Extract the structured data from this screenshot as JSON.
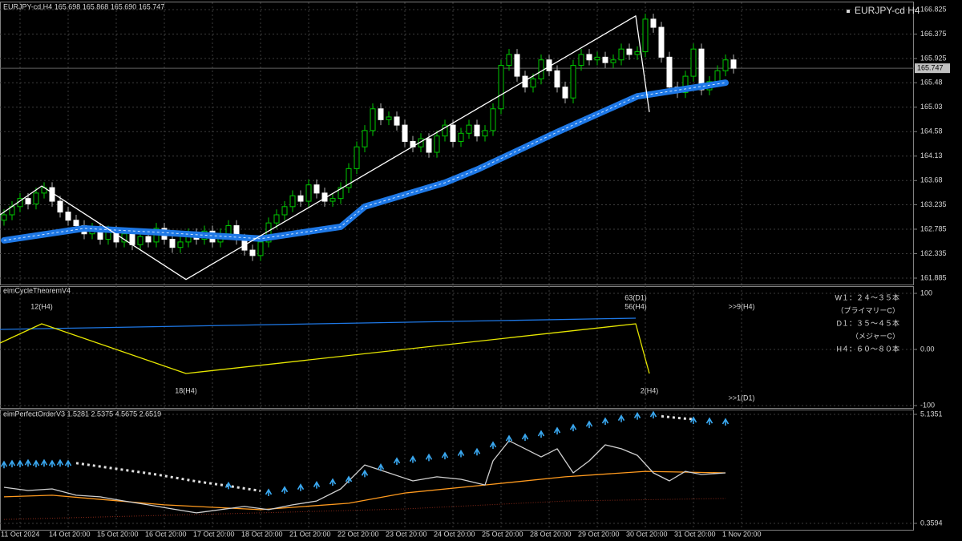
{
  "chart_data": [
    {
      "type": "candlestick",
      "title": "EURJPY-cd,H4  165.698 165.868 165.690 165.747",
      "symbol_label": "EURJPY-cd H4",
      "ylim": [
        161.767,
        166.958
      ],
      "yticks": [
        166.825,
        166.375,
        165.925,
        165.48,
        165.03,
        164.58,
        164.13,
        163.68,
        163.235,
        162.785,
        162.335,
        161.885
      ],
      "grid": true,
      "last_price": 165.747,
      "up_color": "#00c800",
      "down_color": "#ffffff",
      "ohlc": [
        [
          162.95,
          163.15,
          162.85,
          163.05
        ],
        [
          163.05,
          163.3,
          162.95,
          163.2
        ],
        [
          163.2,
          163.45,
          163.1,
          163.35
        ],
        [
          163.35,
          163.45,
          163.15,
          163.25
        ],
        [
          163.25,
          163.55,
          163.15,
          163.45
        ],
        [
          163.45,
          163.65,
          163.35,
          163.55
        ],
        [
          163.55,
          163.65,
          163.2,
          163.3
        ],
        [
          163.3,
          163.4,
          163.0,
          163.1
        ],
        [
          163.1,
          163.2,
          162.85,
          162.95
        ],
        [
          162.95,
          163.05,
          162.75,
          162.85
        ],
        [
          162.85,
          162.95,
          162.6,
          162.7
        ],
        [
          162.7,
          162.9,
          162.6,
          162.8
        ],
        [
          162.8,
          162.9,
          162.5,
          162.6
        ],
        [
          162.6,
          162.85,
          162.5,
          162.75
        ],
        [
          162.75,
          162.85,
          162.45,
          162.55
        ],
        [
          162.55,
          162.8,
          162.45,
          162.7
        ],
        [
          162.7,
          162.8,
          162.4,
          162.5
        ],
        [
          162.5,
          162.75,
          162.4,
          162.65
        ],
        [
          162.65,
          162.75,
          162.45,
          162.55
        ],
        [
          162.55,
          162.9,
          162.45,
          162.8
        ],
        [
          162.8,
          162.9,
          162.5,
          162.6
        ],
        [
          162.6,
          162.7,
          162.35,
          162.45
        ],
        [
          162.45,
          162.65,
          162.35,
          162.55
        ],
        [
          162.55,
          162.8,
          162.45,
          162.7
        ],
        [
          162.7,
          162.8,
          162.5,
          162.6
        ],
        [
          162.6,
          162.85,
          162.5,
          162.75
        ],
        [
          162.75,
          162.85,
          162.45,
          162.55
        ],
        [
          162.55,
          162.8,
          162.45,
          162.7
        ],
        [
          162.7,
          162.95,
          162.6,
          162.85
        ],
        [
          162.85,
          162.95,
          162.5,
          162.6
        ],
        [
          162.6,
          162.7,
          162.3,
          162.4
        ],
        [
          162.4,
          162.5,
          162.2,
          162.3
        ],
        [
          162.3,
          162.65,
          162.2,
          162.55
        ],
        [
          162.55,
          163.0,
          162.45,
          162.9
        ],
        [
          162.9,
          163.15,
          162.8,
          163.05
        ],
        [
          163.05,
          163.3,
          162.95,
          163.2
        ],
        [
          163.2,
          163.5,
          163.1,
          163.4
        ],
        [
          163.4,
          163.5,
          163.2,
          163.3
        ],
        [
          163.3,
          163.7,
          163.2,
          163.6
        ],
        [
          163.6,
          163.7,
          163.35,
          163.45
        ],
        [
          163.45,
          163.55,
          163.2,
          163.3
        ],
        [
          163.3,
          163.45,
          163.2,
          163.35
        ],
        [
          163.35,
          163.65,
          163.25,
          163.55
        ],
        [
          163.55,
          164.0,
          163.45,
          163.9
        ],
        [
          163.9,
          164.4,
          163.8,
          164.3
        ],
        [
          164.3,
          164.7,
          164.2,
          164.6
        ],
        [
          164.6,
          165.1,
          164.5,
          165.0
        ],
        [
          165.0,
          165.1,
          164.7,
          164.8
        ],
        [
          164.8,
          164.95,
          164.7,
          164.85
        ],
        [
          164.85,
          164.95,
          164.6,
          164.7
        ],
        [
          164.7,
          164.8,
          164.3,
          164.4
        ],
        [
          164.4,
          164.5,
          164.2,
          164.3
        ],
        [
          164.3,
          164.55,
          164.2,
          164.45
        ],
        [
          164.45,
          164.55,
          164.1,
          164.2
        ],
        [
          164.2,
          164.6,
          164.1,
          164.5
        ],
        [
          164.5,
          164.8,
          164.4,
          164.7
        ],
        [
          164.7,
          164.8,
          164.3,
          164.4
        ],
        [
          164.4,
          164.65,
          164.3,
          164.55
        ],
        [
          164.55,
          164.8,
          164.45,
          164.7
        ],
        [
          164.7,
          164.8,
          164.4,
          164.5
        ],
        [
          164.5,
          164.7,
          164.4,
          164.6
        ],
        [
          164.6,
          165.1,
          164.5,
          165.0
        ],
        [
          165.0,
          165.9,
          164.9,
          165.8
        ],
        [
          165.8,
          166.1,
          165.7,
          166.0
        ],
        [
          166.0,
          166.1,
          165.5,
          165.6
        ],
        [
          165.6,
          165.7,
          165.3,
          165.4
        ],
        [
          165.4,
          165.65,
          165.3,
          165.55
        ],
        [
          165.55,
          166.0,
          165.45,
          165.9
        ],
        [
          165.9,
          166.0,
          165.6,
          165.7
        ],
        [
          165.7,
          165.8,
          165.3,
          165.4
        ],
        [
          165.4,
          165.5,
          165.1,
          165.2
        ],
        [
          165.2,
          165.9,
          165.1,
          165.8
        ],
        [
          165.8,
          166.1,
          165.7,
          166.0
        ],
        [
          166.0,
          166.1,
          165.8,
          165.9
        ],
        [
          165.9,
          166.05,
          165.8,
          165.95
        ],
        [
          165.95,
          166.05,
          165.75,
          165.85
        ],
        [
          165.85,
          166.0,
          165.75,
          165.9
        ],
        [
          165.9,
          166.2,
          165.8,
          166.1
        ],
        [
          166.1,
          166.2,
          165.9,
          166.0
        ],
        [
          166.0,
          166.15,
          165.9,
          166.05
        ],
        [
          166.05,
          166.75,
          165.95,
          166.65
        ],
        [
          166.65,
          166.75,
          166.4,
          166.5
        ],
        [
          166.5,
          166.6,
          165.85,
          165.95
        ],
        [
          165.95,
          166.05,
          165.3,
          165.4
        ],
        [
          165.4,
          165.5,
          165.2,
          165.3
        ],
        [
          165.3,
          165.7,
          165.2,
          165.6
        ],
        [
          165.6,
          166.2,
          165.5,
          166.1
        ],
        [
          166.1,
          166.2,
          165.25,
          165.35
        ],
        [
          165.35,
          165.6,
          165.25,
          165.5
        ],
        [
          165.5,
          165.8,
          165.4,
          165.7
        ],
        [
          165.7,
          166.0,
          165.6,
          165.9
        ],
        [
          165.9,
          166.0,
          165.65,
          165.747
        ]
      ],
      "series": [
        {
          "style": "ma",
          "color": "#1e78e6",
          "x": [
            0,
            10,
            19,
            32,
            42,
            45,
            55,
            59,
            69,
            79,
            90
          ],
          "values": [
            162.58,
            162.8,
            162.73,
            162.61,
            162.83,
            163.2,
            163.64,
            163.88,
            164.57,
            165.23,
            165.48
          ]
        },
        {
          "style": "line",
          "color": "#ffffff",
          "x": [
            -0.5,
            4.7,
            22.7,
            78.8,
            80.5
          ],
          "values": [
            163.05,
            163.58,
            161.86,
            166.71,
            164.94
          ]
        }
      ]
    },
    {
      "type": "line",
      "title": "eimCycleTheoremV4",
      "ylim": [
        -104.3,
        112.9
      ],
      "yticks": [
        100,
        {
          "value": 0,
          "label": "0.00"
        },
        -100
      ],
      "grid": true,
      "series": [
        {
          "style": "line",
          "color": "#1e78e6",
          "x": [
            -0.5,
            78.8
          ],
          "values": [
            35.7,
            55.7
          ]
        },
        {
          "style": "line",
          "color": "#e6e600",
          "x": [
            -0.5,
            4.7,
            22.7,
            78.8,
            80.5
          ],
          "values": [
            11.4,
            45.7,
            -42.9,
            45.7,
            -42.9
          ]
        }
      ],
      "annotations": [
        "12(H4)",
        "18(H4)",
        "63(D1)",
        "56(H4)",
        ">>9(H4)",
        "2(H4)",
        ">>1(D1)"
      ],
      "notes": [
        "W１：２４～３５本",
        "（プライマリーC）",
        "D１：３５～４５本",
        "（メジャーC）",
        "H４：６０～８０本"
      ]
    },
    {
      "type": "line",
      "title": "eimPerfectOrderV3 1.5281 2.5375 4.5675 2.6519",
      "ylim": [
        0.078,
        5.346
      ],
      "yticks": [
        5.1351,
        0.3594
      ],
      "grid": true,
      "xlim": [
        -0.5,
        113.5
      ],
      "xticks": [
        {
          "value": 2,
          "label": "11 Oct 2024"
        },
        {
          "value": 8,
          "label": "14 Oct 20:00"
        },
        {
          "value": 14,
          "label": "15 Oct 20:00"
        },
        {
          "value": 20,
          "label": "16 Oct 20:00"
        },
        {
          "value": 26,
          "label": "17 Oct 20:00"
        },
        {
          "value": 32,
          "label": "18 Oct 20:00"
        },
        {
          "value": 38,
          "label": "21 Oct 20:00"
        },
        {
          "value": 44,
          "label": "22 Oct 20:00"
        },
        {
          "value": 50,
          "label": "23 Oct 20:00"
        },
        {
          "value": 56,
          "label": "24 Oct 20:00"
        },
        {
          "value": 62,
          "label": "25 Oct 20:00"
        },
        {
          "value": 68,
          "label": "28 Oct 20:00"
        },
        {
          "value": 74,
          "label": "29 Oct 20:00"
        },
        {
          "value": 80,
          "label": "30 Oct 20:00"
        },
        {
          "value": 86,
          "label": "31 Oct 20:00"
        },
        {
          "value": 92,
          "label": "1 Nov 20:00"
        }
      ],
      "series": [
        {
          "style": "dots",
          "color": "#8b2a1a",
          "x": [
            0,
            32,
            50,
            70,
            90
          ],
          "values": [
            0.53,
            0.82,
            0.99,
            1.34,
            1.45
          ]
        },
        {
          "style": "line",
          "color": "#ff9a1e",
          "x": [
            0,
            6,
            20,
            32,
            43,
            50,
            60,
            70,
            80,
            90
          ],
          "values": [
            1.52,
            1.59,
            1.17,
            0.96,
            1.24,
            1.69,
            2.04,
            2.4,
            2.64,
            2.57
          ]
        },
        {
          "style": "line",
          "color": "#d0d0d0",
          "x": [
            0,
            3,
            6,
            9,
            12,
            15,
            18,
            21,
            24,
            27,
            30,
            33,
            36,
            39,
            42,
            45,
            48,
            51,
            54,
            57,
            60,
            61,
            63,
            65,
            67,
            69,
            71,
            73,
            75,
            77,
            79,
            81,
            83,
            85,
            87,
            90
          ],
          "values": [
            1.94,
            1.8,
            1.87,
            1.59,
            1.52,
            1.34,
            1.17,
            0.99,
            0.82,
            0.96,
            1.1,
            0.96,
            1.17,
            1.34,
            1.87,
            2.92,
            2.57,
            2.22,
            2.4,
            2.29,
            2.04,
            3.1,
            3.98,
            3.63,
            3.27,
            3.63,
            2.57,
            3.1,
            3.8,
            3.63,
            3.34,
            2.57,
            2.22,
            2.64,
            2.5,
            2.57
          ]
        },
        {
          "style": "dotted",
          "color": "#e0e0e0",
          "x": [
            9,
            14,
            19,
            24,
            28,
            32,
            60,
            82,
            84,
            86
          ],
          "values": [
            3.0,
            2.75,
            2.5,
            2.2,
            2.0,
            1.78,
            null,
            5.05,
            4.98,
            4.92
          ]
        },
        {
          "style": "arrows",
          "color": "#3aa8f0",
          "x": [
            0,
            1,
            2,
            3,
            4,
            5,
            6,
            7,
            8,
            28,
            33,
            35,
            37,
            39,
            41,
            43,
            45,
            47,
            49,
            51,
            53,
            55,
            57,
            59,
            61,
            63,
            65,
            67,
            69,
            71,
            73,
            75,
            77,
            79,
            81,
            86,
            88,
            90
          ],
          "values": [
            2.95,
            2.99,
            2.99,
            3.02,
            2.99,
            3.02,
            2.99,
            3.02,
            2.99,
            2.03,
            1.73,
            1.84,
            1.95,
            2.06,
            2.18,
            2.29,
            2.56,
            2.83,
            3.1,
            3.18,
            3.26,
            3.34,
            3.43,
            3.51,
            3.8,
            4.08,
            4.15,
            4.29,
            4.43,
            4.57,
            4.71,
            4.85,
            4.97,
            5.08,
            5.13,
            4.89,
            4.85,
            4.82
          ]
        }
      ]
    }
  ]
}
